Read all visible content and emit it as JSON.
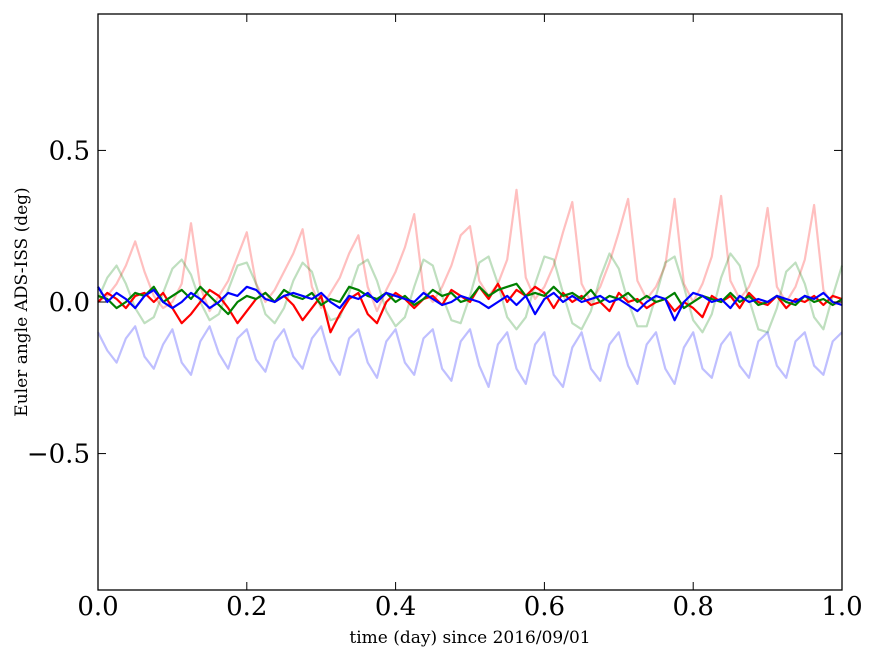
{
  "chart_data": {
    "type": "line",
    "title": "",
    "xlabel": "time (day) since 2016/09/01",
    "ylabel": "Euler angle ADS-ISS (deg)",
    "xlim": [
      0.0,
      1.0
    ],
    "ylim": [
      -0.95,
      0.95
    ],
    "grid": false,
    "legend": "none",
    "xticks": [
      0.0,
      0.2,
      0.4,
      0.6,
      0.8,
      1.0
    ],
    "xtick_labels": [
      "0.0",
      "0.2",
      "0.4",
      "0.6",
      "0.8",
      "1.0"
    ],
    "yticks": [
      -0.5,
      0.0,
      0.5
    ],
    "ytick_labels": [
      "−0.5",
      "0.0",
      "0.5"
    ],
    "x": [
      0.0,
      0.0125,
      0.025,
      0.0375,
      0.05,
      0.0625,
      0.075,
      0.0875,
      0.1,
      0.1125,
      0.125,
      0.1375,
      0.15,
      0.1625,
      0.175,
      0.1875,
      0.2,
      0.2125,
      0.225,
      0.2375,
      0.25,
      0.2625,
      0.275,
      0.2875,
      0.3,
      0.3125,
      0.325,
      0.3375,
      0.35,
      0.3625,
      0.375,
      0.3875,
      0.4,
      0.4125,
      0.425,
      0.4375,
      0.45,
      0.4625,
      0.475,
      0.4875,
      0.5,
      0.5125,
      0.525,
      0.5375,
      0.55,
      0.5625,
      0.575,
      0.5875,
      0.6,
      0.6125,
      0.625,
      0.6375,
      0.65,
      0.6625,
      0.675,
      0.6875,
      0.7,
      0.7125,
      0.725,
      0.7375,
      0.75,
      0.7625,
      0.775,
      0.7875,
      0.8,
      0.8125,
      0.825,
      0.8375,
      0.85,
      0.8625,
      0.875,
      0.8875,
      0.9,
      0.9125,
      0.925,
      0.9375,
      0.95,
      0.9625,
      0.975,
      0.9875,
      1.0
    ],
    "series": [
      {
        "color": "#ff0000",
        "opacity": 0.25,
        "values": [
          0.0,
          0.02,
          0.06,
          0.12,
          0.2,
          0.1,
          0.02,
          -0.02,
          0.0,
          0.06,
          0.26,
          0.05,
          -0.03,
          0.02,
          0.07,
          0.15,
          0.23,
          0.06,
          0.0,
          0.04,
          0.1,
          0.16,
          0.24,
          0.05,
          -0.02,
          0.03,
          0.08,
          0.16,
          0.22,
          0.05,
          -0.03,
          0.04,
          0.1,
          0.18,
          0.29,
          0.04,
          0.0,
          0.05,
          0.12,
          0.22,
          0.25,
          0.07,
          0.02,
          0.06,
          0.14,
          0.37,
          0.08,
          0.01,
          0.05,
          0.12,
          0.23,
          0.33,
          0.06,
          0.0,
          0.05,
          0.13,
          0.23,
          0.34,
          0.07,
          0.01,
          0.05,
          0.12,
          0.34,
          0.06,
          0.0,
          0.06,
          0.15,
          0.35,
          0.07,
          0.01,
          0.05,
          0.12,
          0.31,
          0.05,
          0.0,
          0.05,
          0.14,
          0.32,
          0.04,
          -0.01,
          0.0
        ]
      },
      {
        "color": "#008000",
        "opacity": 0.25,
        "values": [
          0.01,
          0.08,
          0.12,
          0.06,
          -0.02,
          -0.07,
          -0.05,
          0.03,
          0.11,
          0.14,
          0.09,
          0.0,
          -0.06,
          -0.04,
          0.04,
          0.12,
          0.13,
          0.06,
          -0.04,
          -0.07,
          -0.02,
          0.07,
          0.13,
          0.1,
          0.0,
          -0.06,
          -0.05,
          0.03,
          0.12,
          0.14,
          0.07,
          -0.03,
          -0.08,
          -0.05,
          0.05,
          0.14,
          0.12,
          0.02,
          -0.06,
          -0.07,
          0.02,
          0.13,
          0.15,
          0.06,
          -0.05,
          -0.09,
          -0.05,
          0.06,
          0.15,
          0.14,
          0.03,
          -0.07,
          -0.09,
          -0.03,
          0.08,
          0.16,
          0.11,
          0.0,
          -0.08,
          -0.08,
          0.02,
          0.13,
          0.15,
          0.05,
          -0.06,
          -0.1,
          -0.04,
          0.08,
          0.16,
          0.12,
          0.01,
          -0.09,
          -0.1,
          -0.02,
          0.1,
          0.13,
          0.06,
          -0.05,
          -0.09,
          0.02,
          0.12
        ]
      },
      {
        "color": "#0000ff",
        "opacity": 0.25,
        "values": [
          -0.1,
          -0.16,
          -0.2,
          -0.12,
          -0.08,
          -0.18,
          -0.22,
          -0.14,
          -0.09,
          -0.2,
          -0.24,
          -0.13,
          -0.08,
          -0.17,
          -0.22,
          -0.12,
          -0.09,
          -0.19,
          -0.23,
          -0.13,
          -0.09,
          -0.18,
          -0.22,
          -0.12,
          -0.08,
          -0.19,
          -0.24,
          -0.12,
          -0.09,
          -0.2,
          -0.25,
          -0.13,
          -0.09,
          -0.2,
          -0.24,
          -0.12,
          -0.09,
          -0.22,
          -0.26,
          -0.13,
          -0.09,
          -0.21,
          -0.28,
          -0.14,
          -0.1,
          -0.22,
          -0.27,
          -0.14,
          -0.1,
          -0.24,
          -0.28,
          -0.15,
          -0.1,
          -0.22,
          -0.26,
          -0.14,
          -0.1,
          -0.21,
          -0.27,
          -0.14,
          -0.1,
          -0.22,
          -0.27,
          -0.15,
          -0.1,
          -0.22,
          -0.25,
          -0.14,
          -0.1,
          -0.21,
          -0.25,
          -0.13,
          -0.1,
          -0.21,
          -0.25,
          -0.13,
          -0.1,
          -0.21,
          -0.24,
          -0.13,
          -0.1
        ]
      },
      {
        "color": "#ff0000",
        "opacity": 1.0,
        "values": [
          0.0,
          0.03,
          0.01,
          -0.02,
          0.02,
          0.03,
          0.0,
          0.03,
          -0.02,
          -0.07,
          -0.04,
          0.0,
          0.04,
          0.02,
          -0.02,
          -0.07,
          -0.03,
          0.01,
          0.03,
          0.0,
          0.02,
          -0.01,
          -0.06,
          -0.02,
          0.02,
          -0.1,
          -0.04,
          0.01,
          0.03,
          -0.04,
          -0.07,
          0.0,
          0.03,
          0.01,
          -0.02,
          0.01,
          0.02,
          -0.01,
          0.04,
          0.02,
          0.0,
          0.05,
          0.01,
          0.06,
          0.0,
          0.04,
          0.02,
          0.05,
          0.03,
          -0.02,
          0.03,
          0.0,
          0.02,
          -0.01,
          0.0,
          -0.03,
          0.03,
          0.0,
          0.01,
          -0.02,
          0.0,
          0.01,
          -0.03,
          0.0,
          -0.02,
          -0.05,
          0.02,
          0.0,
          0.02,
          -0.02,
          0.03,
          0.0,
          -0.01,
          0.02,
          -0.02,
          0.01,
          0.0,
          0.02,
          -0.01,
          0.02,
          0.01
        ]
      },
      {
        "color": "#008000",
        "opacity": 1.0,
        "values": [
          0.02,
          0.01,
          -0.02,
          0.0,
          0.03,
          0.02,
          0.05,
          0.0,
          0.02,
          0.04,
          0.01,
          0.05,
          0.02,
          -0.01,
          -0.04,
          0.0,
          0.02,
          0.01,
          0.03,
          0.0,
          0.04,
          0.02,
          0.01,
          0.03,
          -0.01,
          0.01,
          0.0,
          0.05,
          0.04,
          0.02,
          0.01,
          0.03,
          0.0,
          0.02,
          -0.01,
          0.01,
          0.04,
          0.02,
          0.03,
          0.0,
          0.01,
          0.05,
          0.02,
          0.04,
          0.05,
          0.06,
          0.02,
          0.03,
          0.02,
          0.05,
          0.02,
          0.03,
          0.01,
          0.04,
          0.0,
          0.02,
          0.01,
          0.03,
          0.0,
          0.02,
          0.0,
          0.01,
          0.03,
          -0.02,
          0.0,
          0.02,
          0.01,
          0.0,
          0.03,
          0.0,
          0.02,
          -0.01,
          0.0,
          0.02,
          0.0,
          -0.01,
          0.02,
          0.0,
          0.01,
          -0.01,
          0.01
        ]
      },
      {
        "color": "#0000ff",
        "opacity": 1.0,
        "values": [
          0.05,
          0.0,
          0.03,
          0.01,
          -0.02,
          0.02,
          0.04,
          0.0,
          -0.02,
          0.0,
          0.03,
          0.01,
          -0.02,
          0.0,
          0.03,
          0.02,
          0.05,
          0.04,
          0.01,
          0.0,
          0.02,
          0.03,
          0.02,
          0.01,
          0.03,
          0.0,
          -0.02,
          0.02,
          0.01,
          0.03,
          0.0,
          0.03,
          0.02,
          0.01,
          0.0,
          0.03,
          0.01,
          -0.01,
          0.0,
          0.02,
          0.01,
          0.0,
          -0.02,
          0.0,
          0.02,
          -0.01,
          0.02,
          -0.04,
          0.01,
          0.03,
          0.0,
          0.02,
          0.0,
          0.01,
          0.02,
          0.0,
          0.01,
          -0.01,
          -0.03,
          0.0,
          0.02,
          0.01,
          -0.06,
          0.0,
          0.03,
          0.02,
          0.0,
          0.01,
          -0.02,
          0.02,
          0.0,
          0.01,
          0.0,
          0.02,
          0.01,
          0.0,
          0.02,
          0.01,
          0.03,
          0.0,
          -0.01
        ]
      }
    ]
  }
}
